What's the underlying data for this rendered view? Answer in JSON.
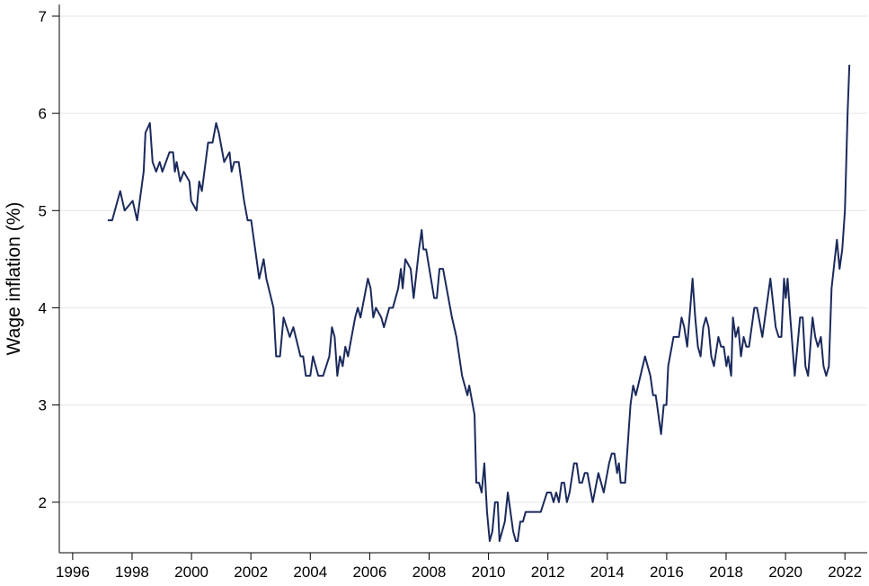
{
  "chart_data": {
    "type": "line",
    "ylabel": "Wage inflation (%)",
    "color": "#1b2a5c",
    "grid": true,
    "xlim": [
      1995.55,
      2022.75
    ],
    "xticks": [
      1996,
      1998,
      2000,
      2002,
      2004,
      2006,
      2008,
      2010,
      2012,
      2014,
      2016,
      2018,
      2020,
      2022
    ],
    "ylim": [
      1.48,
      7.12
    ],
    "yticks": [
      2,
      3,
      4,
      5,
      6,
      7
    ],
    "x": [
      1997.18,
      1997.33,
      1997.6,
      1997.75,
      1998.02,
      1998.17,
      1998.39,
      1998.45,
      1998.6,
      1998.69,
      1998.81,
      1998.93,
      1999.02,
      1999.26,
      1999.38,
      1999.44,
      1999.5,
      1999.62,
      1999.74,
      1999.93,
      1999.99,
      2000.17,
      2000.26,
      2000.35,
      2000.56,
      2000.71,
      2000.83,
      2000.92,
      2001.1,
      2001.28,
      2001.35,
      2001.44,
      2001.59,
      2001.77,
      2001.89,
      2002.01,
      2002.28,
      2002.43,
      2002.52,
      2002.76,
      2002.85,
      2002.98,
      2003.1,
      2003.31,
      2003.43,
      2003.67,
      2003.76,
      2003.85,
      2004.0,
      2004.09,
      2004.27,
      2004.43,
      2004.64,
      2004.73,
      2004.82,
      2004.91,
      2005.0,
      2005.09,
      2005.18,
      2005.27,
      2005.51,
      2005.6,
      2005.69,
      2005.94,
      2006.03,
      2006.12,
      2006.21,
      2006.39,
      2006.48,
      2006.66,
      2006.78,
      2006.96,
      2007.05,
      2007.11,
      2007.2,
      2007.38,
      2007.48,
      2007.66,
      2007.75,
      2007.81,
      2007.9,
      2008.17,
      2008.26,
      2008.35,
      2008.47,
      2008.77,
      2008.92,
      2009.11,
      2009.29,
      2009.35,
      2009.53,
      2009.59,
      2009.68,
      2009.77,
      2009.86,
      2009.95,
      2010.04,
      2010.13,
      2010.22,
      2010.31,
      2010.37,
      2010.55,
      2010.65,
      2010.83,
      2010.92,
      2010.98,
      2011.07,
      2011.16,
      2011.25,
      2011.76,
      2011.97,
      2012.1,
      2012.19,
      2012.28,
      2012.37,
      2012.46,
      2012.55,
      2012.64,
      2012.73,
      2012.88,
      2012.97,
      2013.06,
      2013.15,
      2013.24,
      2013.33,
      2013.51,
      2013.7,
      2013.88,
      2014.06,
      2014.15,
      2014.24,
      2014.33,
      2014.39,
      2014.45,
      2014.6,
      2014.78,
      2014.87,
      2014.96,
      2015.27,
      2015.45,
      2015.54,
      2015.63,
      2015.81,
      2015.9,
      2015.99,
      2016.05,
      2016.23,
      2016.41,
      2016.5,
      2016.59,
      2016.69,
      2016.87,
      2016.96,
      2017.05,
      2017.14,
      2017.23,
      2017.32,
      2017.41,
      2017.5,
      2017.59,
      2017.74,
      2017.83,
      2017.92,
      2018.01,
      2018.07,
      2018.17,
      2018.23,
      2018.32,
      2018.41,
      2018.5,
      2018.59,
      2018.68,
      2018.77,
      2018.95,
      2019.04,
      2019.22,
      2019.4,
      2019.49,
      2019.67,
      2019.77,
      2019.86,
      2019.95,
      2020.01,
      2020.07,
      2020.16,
      2020.31,
      2020.49,
      2020.58,
      2020.67,
      2020.76,
      2020.91,
      2021.0,
      2021.09,
      2021.19,
      2021.28,
      2021.37,
      2021.46,
      2021.55,
      2021.73,
      2021.82,
      2021.91,
      2022.0,
      2022.09,
      2022.15
    ],
    "values": [
      4.9,
      4.9,
      5.2,
      5.0,
      5.1,
      4.9,
      5.4,
      5.8,
      5.9,
      5.5,
      5.4,
      5.5,
      5.4,
      5.6,
      5.6,
      5.4,
      5.5,
      5.3,
      5.4,
      5.3,
      5.1,
      5.0,
      5.3,
      5.2,
      5.7,
      5.7,
      5.9,
      5.8,
      5.5,
      5.6,
      5.4,
      5.5,
      5.5,
      5.1,
      4.9,
      4.9,
      4.3,
      4.5,
      4.3,
      4.0,
      3.5,
      3.5,
      3.9,
      3.7,
      3.8,
      3.5,
      3.5,
      3.3,
      3.3,
      3.5,
      3.3,
      3.3,
      3.5,
      3.8,
      3.7,
      3.3,
      3.5,
      3.4,
      3.6,
      3.5,
      3.9,
      4.0,
      3.9,
      4.3,
      4.2,
      3.9,
      4.0,
      3.9,
      3.8,
      4.0,
      4.0,
      4.2,
      4.4,
      4.2,
      4.5,
      4.4,
      4.1,
      4.6,
      4.8,
      4.6,
      4.6,
      4.1,
      4.1,
      4.4,
      4.4,
      3.9,
      3.7,
      3.3,
      3.1,
      3.2,
      2.9,
      2.2,
      2.2,
      2.1,
      2.4,
      1.9,
      1.6,
      1.7,
      2.0,
      2.0,
      1.6,
      1.8,
      2.1,
      1.7,
      1.6,
      1.6,
      1.8,
      1.8,
      1.9,
      1.9,
      2.1,
      2.1,
      2.0,
      2.1,
      2.0,
      2.2,
      2.2,
      2.0,
      2.1,
      2.4,
      2.4,
      2.2,
      2.2,
      2.3,
      2.3,
      2.0,
      2.3,
      2.1,
      2.4,
      2.5,
      2.5,
      2.3,
      2.4,
      2.2,
      2.2,
      3.0,
      3.2,
      3.1,
      3.5,
      3.3,
      3.1,
      3.1,
      2.7,
      3.0,
      3.0,
      3.4,
      3.7,
      3.7,
      3.9,
      3.8,
      3.6,
      4.3,
      3.9,
      3.6,
      3.5,
      3.8,
      3.9,
      3.8,
      3.5,
      3.4,
      3.7,
      3.6,
      3.6,
      3.4,
      3.5,
      3.3,
      3.9,
      3.7,
      3.8,
      3.5,
      3.7,
      3.6,
      3.6,
      4.0,
      4.0,
      3.7,
      4.1,
      4.3,
      3.8,
      3.7,
      3.7,
      4.3,
      4.1,
      4.3,
      3.9,
      3.3,
      3.9,
      3.9,
      3.4,
      3.3,
      3.9,
      3.7,
      3.6,
      3.7,
      3.4,
      3.3,
      3.4,
      4.2,
      4.7,
      4.4,
      4.6,
      5.0,
      6.0,
      6.5
    ]
  }
}
